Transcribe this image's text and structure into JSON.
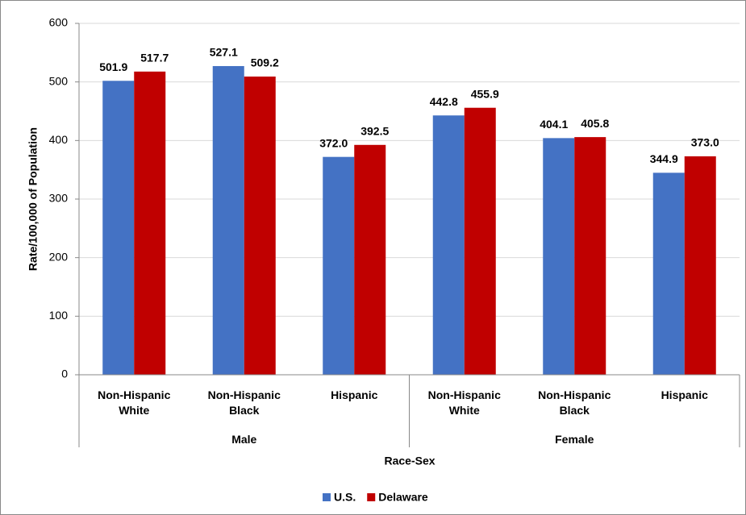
{
  "chart_data": {
    "type": "bar",
    "x_label": "Race-Sex",
    "y_label": "Rate/100,000 of Population",
    "groups": [
      {
        "name": "Male",
        "categories": [
          "Non-Hispanic White",
          "Non-Hispanic Black",
          "Hispanic"
        ]
      },
      {
        "name": "Female",
        "categories": [
          "Non-Hispanic White",
          "Non-Hispanic Black",
          "Hispanic"
        ]
      }
    ],
    "series": [
      {
        "name": "U.S.",
        "color": "#4472c4",
        "values": [
          501.9,
          527.1,
          372,
          442.8,
          404.1,
          344.9
        ],
        "value_labels": [
          "501.9",
          "527.1",
          "372.0",
          "442.8",
          "404.1",
          "344.9"
        ]
      },
      {
        "name": "Delaware",
        "color": "#c00000",
        "values": [
          517.7,
          509.2,
          392.5,
          455.9,
          405.8,
          373
        ],
        "value_labels": [
          "517.7",
          "509.2",
          "392.5",
          "455.9",
          "405.8",
          "373.0"
        ]
      }
    ],
    "ylim": [
      0,
      600
    ],
    "yticks": [
      0,
      100,
      200,
      300,
      400,
      500,
      600
    ],
    "grid": true,
    "legend": "bottom"
  }
}
